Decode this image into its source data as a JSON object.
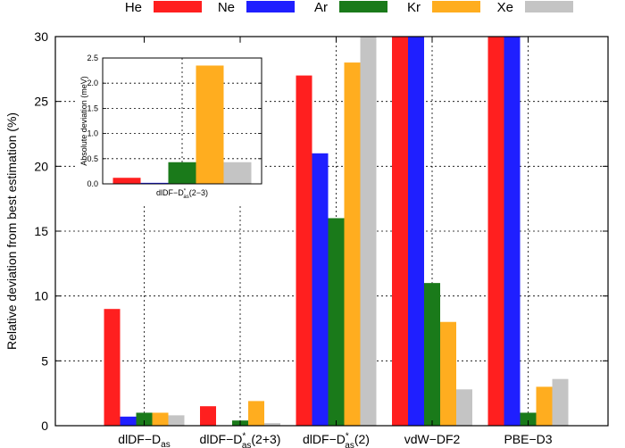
{
  "chart_data": {
    "type": "bar",
    "ylabel": "Relative deviation from best estimation (%)",
    "ylim": [
      0,
      30
    ],
    "yticks": [
      0,
      5,
      10,
      15,
      20,
      25,
      30
    ],
    "grid": true,
    "legend_position": "top",
    "categories": [
      {
        "base": "dlDF−D",
        "sup": "",
        "sub": "as",
        "tail": ""
      },
      {
        "base": "dlDF−D",
        "sup": "*",
        "sub": "as",
        "tail": "(2+3)"
      },
      {
        "base": "dlDF−D",
        "sup": "*",
        "sub": "as",
        "tail": "(2)"
      },
      {
        "base": "vdW−DF2",
        "sup": "",
        "sub": "",
        "tail": ""
      },
      {
        "base": "PBE−D3",
        "sup": "",
        "sub": "",
        "tail": ""
      }
    ],
    "series": [
      {
        "name": "He",
        "color": "#ff1f1f",
        "values": [
          9.0,
          1.5,
          27.0,
          30,
          30
        ]
      },
      {
        "name": "Ne",
        "color": "#1f1fff",
        "values": [
          0.7,
          0.0,
          21.0,
          30,
          30
        ]
      },
      {
        "name": "Ar",
        "color": "#1a7a1a",
        "values": [
          1.0,
          0.4,
          16.0,
          11.0,
          1.0
        ]
      },
      {
        "name": "Kr",
        "color": "#ffad1f",
        "values": [
          1.0,
          1.9,
          28.0,
          8.0,
          3.0
        ]
      },
      {
        "name": "Xe",
        "color": "#c4c4c4",
        "values": [
          0.8,
          0.2,
          30,
          2.8,
          3.6
        ]
      }
    ],
    "inset": {
      "ylabel": "Absolute deviation (meV)",
      "ylim": [
        0,
        2.5
      ],
      "yticks": [
        "0.0",
        "0.5",
        "1.0",
        "1.5",
        "2.0",
        "2.5"
      ],
      "category": {
        "base": "dlDF−D",
        "sup": "*",
        "sub": "as",
        "tail": "(2−3)"
      },
      "values": [
        0.12,
        0.02,
        0.43,
        2.35,
        0.43
      ]
    }
  }
}
